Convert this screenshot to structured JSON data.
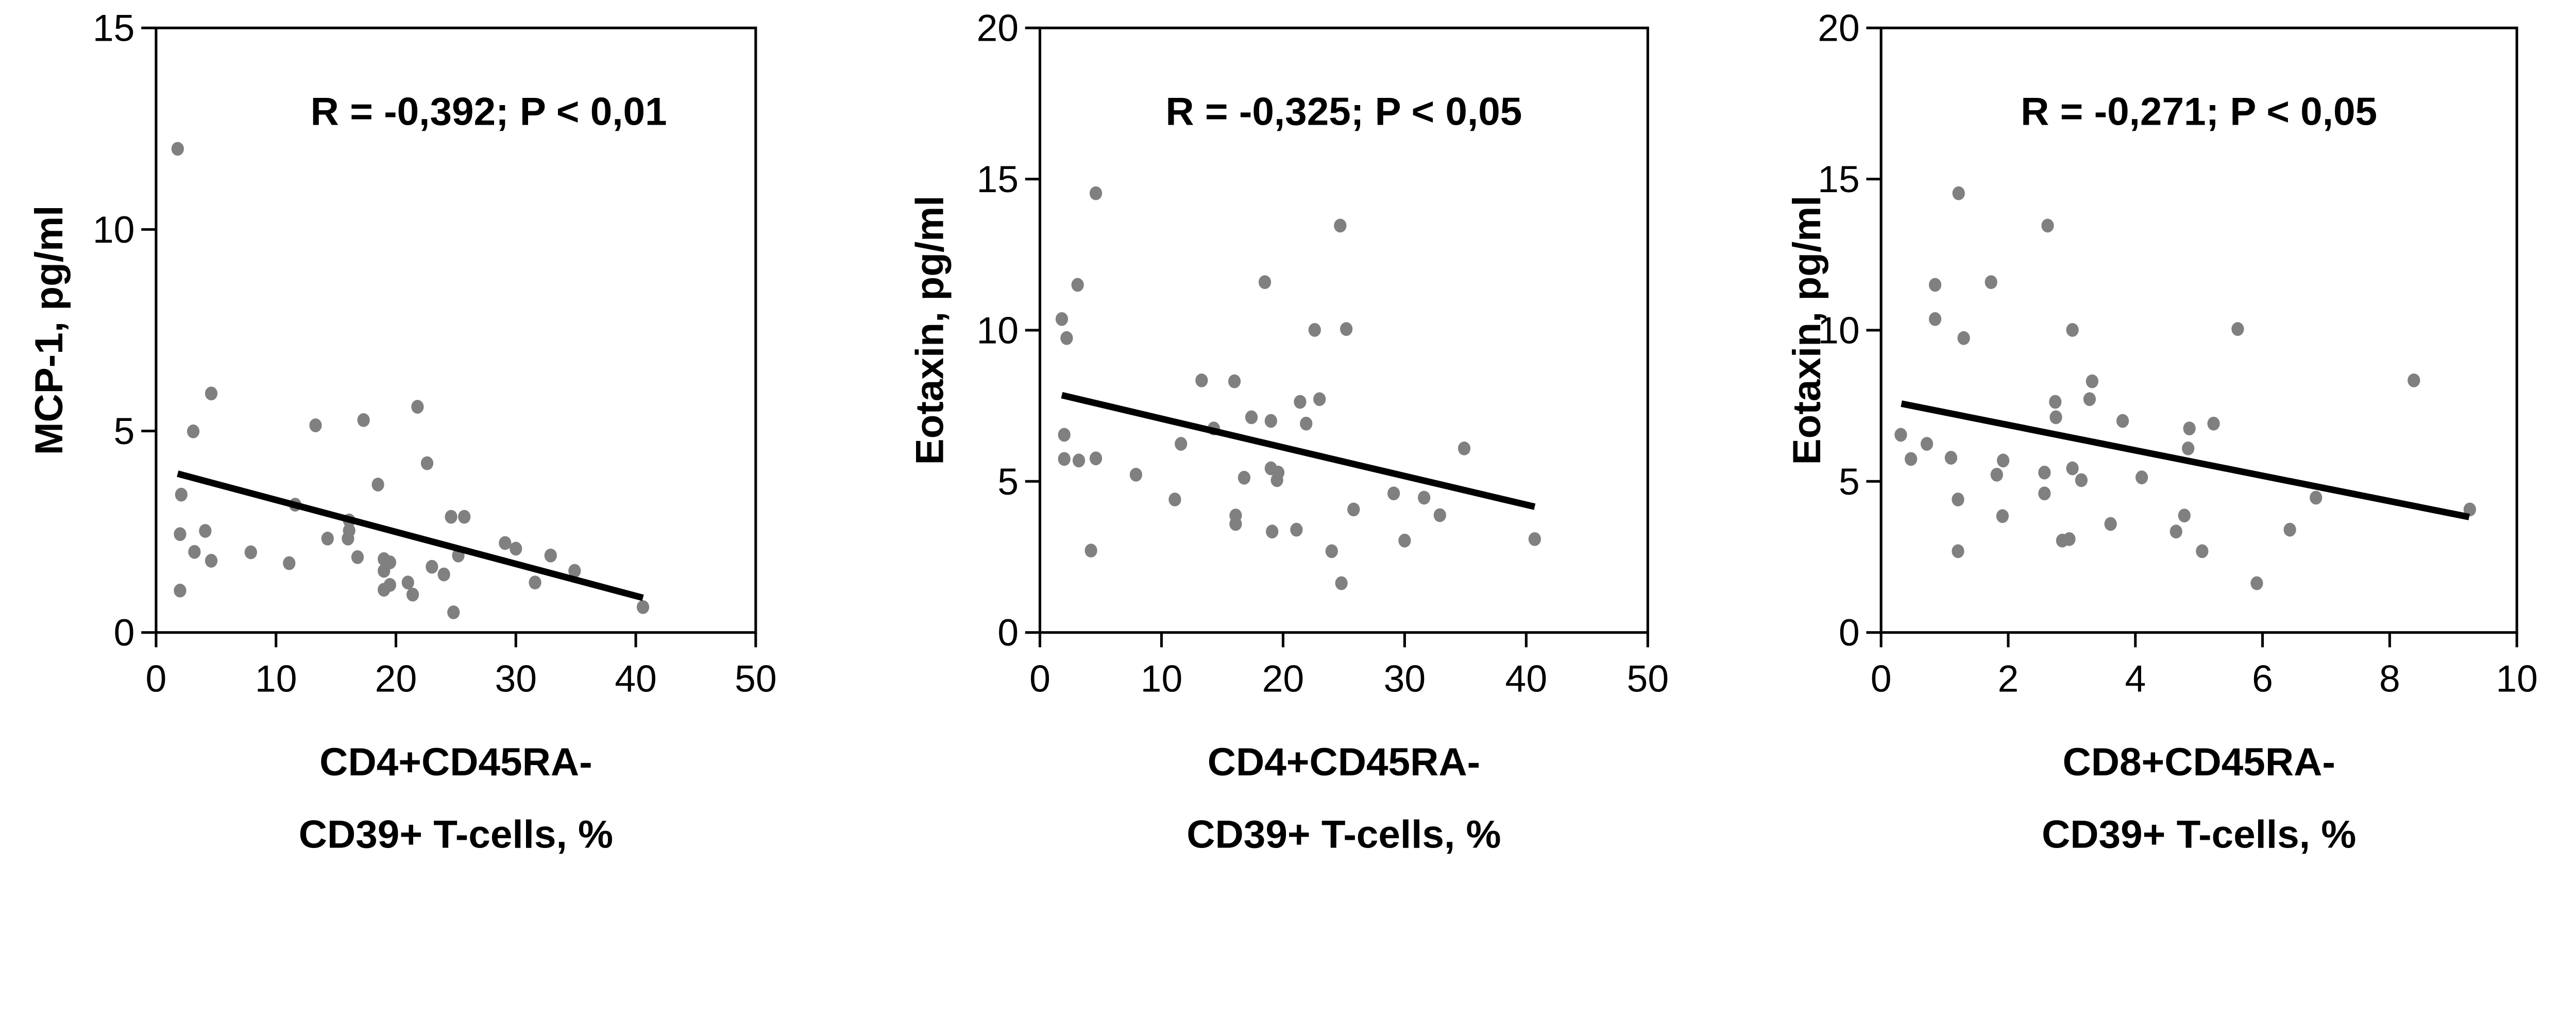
{
  "chart_data": [
    {
      "type": "scatter",
      "annotation": "R = -0,392; P < 0,01",
      "ylabel": "MCP-1, pg/ml",
      "xlabel": [
        "CD4+CD45RA-",
        "CD39+ T-cells, %"
      ],
      "xlim": [
        0,
        50
      ],
      "ylim": [
        0,
        15
      ],
      "xticks": [
        "0",
        "10",
        "20",
        "30",
        "40",
        "50"
      ],
      "yticks": [
        "0",
        "5",
        "10",
        "15"
      ],
      "point_color": "#808080",
      "points": [
        [
          1.8,
          12.0
        ],
        [
          4.6,
          5.93
        ],
        [
          3.1,
          4.99
        ],
        [
          13.3,
          5.14
        ],
        [
          17.3,
          5.27
        ],
        [
          21.8,
          5.6
        ],
        [
          22.6,
          4.2
        ],
        [
          18.5,
          3.67
        ],
        [
          2.1,
          3.42
        ],
        [
          11.6,
          3.17
        ],
        [
          16.1,
          2.78
        ],
        [
          16.1,
          2.53
        ],
        [
          16.0,
          2.33
        ],
        [
          14.3,
          2.33
        ],
        [
          2.0,
          2.44
        ],
        [
          4.1,
          2.52
        ],
        [
          3.2,
          2.0
        ],
        [
          4.6,
          1.78
        ],
        [
          7.9,
          1.99
        ],
        [
          11.1,
          1.72
        ],
        [
          16.8,
          1.87
        ],
        [
          19.0,
          1.82
        ],
        [
          19.5,
          1.74
        ],
        [
          19.0,
          1.53
        ],
        [
          19.0,
          1.06
        ],
        [
          19.5,
          1.18
        ],
        [
          21.0,
          1.24
        ],
        [
          21.4,
          0.94
        ],
        [
          23.0,
          1.63
        ],
        [
          24.0,
          1.44
        ],
        [
          24.6,
          2.87
        ],
        [
          25.7,
          2.87
        ],
        [
          25.2,
          1.91
        ],
        [
          24.8,
          0.5
        ],
        [
          29.1,
          2.22
        ],
        [
          30.0,
          2.08
        ],
        [
          31.6,
          1.24
        ],
        [
          32.9,
          1.91
        ],
        [
          34.9,
          1.53
        ],
        [
          40.6,
          0.63
        ],
        [
          2.0,
          1.04
        ]
      ],
      "regression_line": [
        [
          1.8,
          3.94
        ],
        [
          40.6,
          0.86
        ]
      ]
    },
    {
      "type": "scatter",
      "annotation": "R = -0,325; P < 0,05",
      "ylabel": "Eotaxin, pg/ml",
      "xlabel": [
        "CD4+CD45RA-",
        "CD39+ T-cells, %"
      ],
      "xlim": [
        0,
        50
      ],
      "ylim": [
        0,
        20
      ],
      "xticks": [
        "0",
        "10",
        "20",
        "30",
        "40",
        "50"
      ],
      "yticks": [
        "0",
        "5",
        "10",
        "15",
        "20"
      ],
      "point_color": "#808080",
      "points": [
        [
          4.6,
          14.53
        ],
        [
          24.7,
          13.46
        ],
        [
          3.1,
          11.5
        ],
        [
          18.5,
          11.59
        ],
        [
          1.8,
          10.37
        ],
        [
          2.2,
          9.74
        ],
        [
          22.6,
          10.01
        ],
        [
          25.2,
          10.04
        ],
        [
          13.3,
          8.34
        ],
        [
          16.0,
          8.31
        ],
        [
          23.0,
          7.72
        ],
        [
          21.4,
          7.63
        ],
        [
          17.4,
          7.12
        ],
        [
          19.0,
          7.0
        ],
        [
          21.9,
          6.91
        ],
        [
          14.3,
          6.75
        ],
        [
          2.0,
          6.54
        ],
        [
          11.6,
          6.24
        ],
        [
          34.9,
          6.09
        ],
        [
          2.0,
          5.74
        ],
        [
          3.2,
          5.69
        ],
        [
          4.6,
          5.76
        ],
        [
          7.9,
          5.22
        ],
        [
          19.0,
          5.43
        ],
        [
          19.6,
          5.29
        ],
        [
          19.5,
          5.04
        ],
        [
          16.8,
          5.12
        ],
        [
          11.1,
          4.4
        ],
        [
          29.1,
          4.6
        ],
        [
          31.6,
          4.46
        ],
        [
          25.8,
          4.07
        ],
        [
          32.9,
          3.88
        ],
        [
          16.1,
          3.87
        ],
        [
          16.1,
          3.59
        ],
        [
          19.1,
          3.34
        ],
        [
          21.1,
          3.4
        ],
        [
          30.0,
          3.04
        ],
        [
          40.7,
          3.09
        ],
        [
          4.2,
          2.71
        ],
        [
          24.0,
          2.69
        ],
        [
          24.8,
          1.63
        ]
      ],
      "regression_line": [
        [
          1.8,
          7.85
        ],
        [
          40.7,
          4.16
        ]
      ]
    },
    {
      "type": "scatter",
      "annotation": "R = -0,271; P < 0,05",
      "ylabel": "Eotaxin, pg/ml",
      "xlabel": [
        "CD8+CD45RA-",
        "CD39+ T-cells, %"
      ],
      "xlim": [
        0,
        10
      ],
      "ylim": [
        0,
        20
      ],
      "xticks": [
        "0",
        "2",
        "4",
        "6",
        "8",
        "10"
      ],
      "yticks": [
        "0",
        "5",
        "10",
        "15",
        "20"
      ],
      "point_color": "#808080",
      "points": [
        [
          1.22,
          14.53
        ],
        [
          2.62,
          13.46
        ],
        [
          0.85,
          11.5
        ],
        [
          1.73,
          11.59
        ],
        [
          0.85,
          10.37
        ],
        [
          1.3,
          9.74
        ],
        [
          3.01,
          10.01
        ],
        [
          5.61,
          10.04
        ],
        [
          3.32,
          8.31
        ],
        [
          8.38,
          8.34
        ],
        [
          2.74,
          7.63
        ],
        [
          3.28,
          7.72
        ],
        [
          2.75,
          7.12
        ],
        [
          3.8,
          7.0
        ],
        [
          5.23,
          6.91
        ],
        [
          4.85,
          6.75
        ],
        [
          0.31,
          6.54
        ],
        [
          0.72,
          6.24
        ],
        [
          4.83,
          6.09
        ],
        [
          0.47,
          5.74
        ],
        [
          1.1,
          5.78
        ],
        [
          1.92,
          5.69
        ],
        [
          1.82,
          5.22
        ],
        [
          2.57,
          5.29
        ],
        [
          3.01,
          5.43
        ],
        [
          3.15,
          5.04
        ],
        [
          4.1,
          5.13
        ],
        [
          1.21,
          4.4
        ],
        [
          2.57,
          4.6
        ],
        [
          6.84,
          4.46
        ],
        [
          9.26,
          4.07
        ],
        [
          1.91,
          3.85
        ],
        [
          4.77,
          3.87
        ],
        [
          3.61,
          3.59
        ],
        [
          4.64,
          3.34
        ],
        [
          6.43,
          3.4
        ],
        [
          2.85,
          3.04
        ],
        [
          2.96,
          3.09
        ],
        [
          1.21,
          2.69
        ],
        [
          5.05,
          2.69
        ],
        [
          5.91,
          1.63
        ]
      ],
      "regression_line": [
        [
          0.32,
          7.57
        ],
        [
          9.25,
          3.82
        ]
      ]
    }
  ]
}
